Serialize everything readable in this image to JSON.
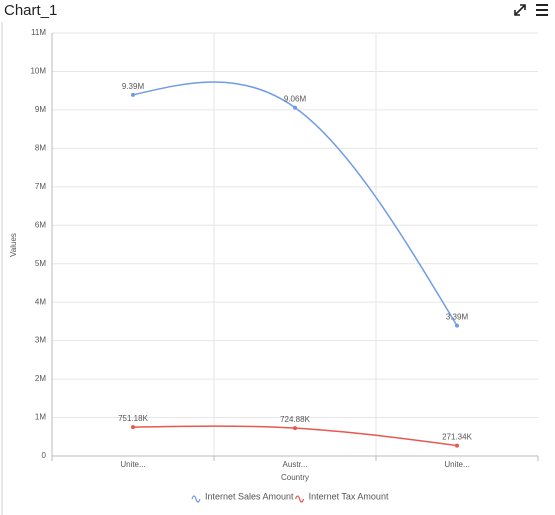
{
  "header": {
    "title": "Chart_1"
  },
  "chart_data": {
    "type": "spline",
    "x_label": "Country",
    "y_label": "Values",
    "categories": [
      "Unite...",
      "Austr...",
      "Unite..."
    ],
    "series": [
      {
        "name": "Internet Sales Amount",
        "color": "#6f9be8",
        "values": [
          9390000,
          9060000,
          3390000
        ],
        "value_labels": [
          "9.39M",
          "9.06M",
          "3.39M"
        ]
      },
      {
        "name": "Internet Tax Amount",
        "color": "#e8584f",
        "values": [
          751180,
          724880,
          271340
        ],
        "value_labels": [
          "751.18K",
          "724.88K",
          "271.34K"
        ]
      }
    ],
    "ylim": [
      0,
      11000000
    ],
    "yticks": [
      0,
      {
        "value": 1000000,
        "label": "1M"
      },
      {
        "value": 2000000,
        "label": "2M"
      },
      {
        "value": 3000000,
        "label": "3M"
      },
      {
        "value": 4000000,
        "label": "4M"
      },
      {
        "value": 5000000,
        "label": "5M"
      },
      {
        "value": 6000000,
        "label": "6M"
      },
      {
        "value": 7000000,
        "label": "7M"
      },
      {
        "value": 8000000,
        "label": "8M"
      },
      {
        "value": 9000000,
        "label": "9M"
      },
      {
        "value": 10000000,
        "label": "10M"
      },
      {
        "value": 11000000,
        "label": "11M"
      }
    ],
    "grid": true,
    "legend": "bottom"
  }
}
